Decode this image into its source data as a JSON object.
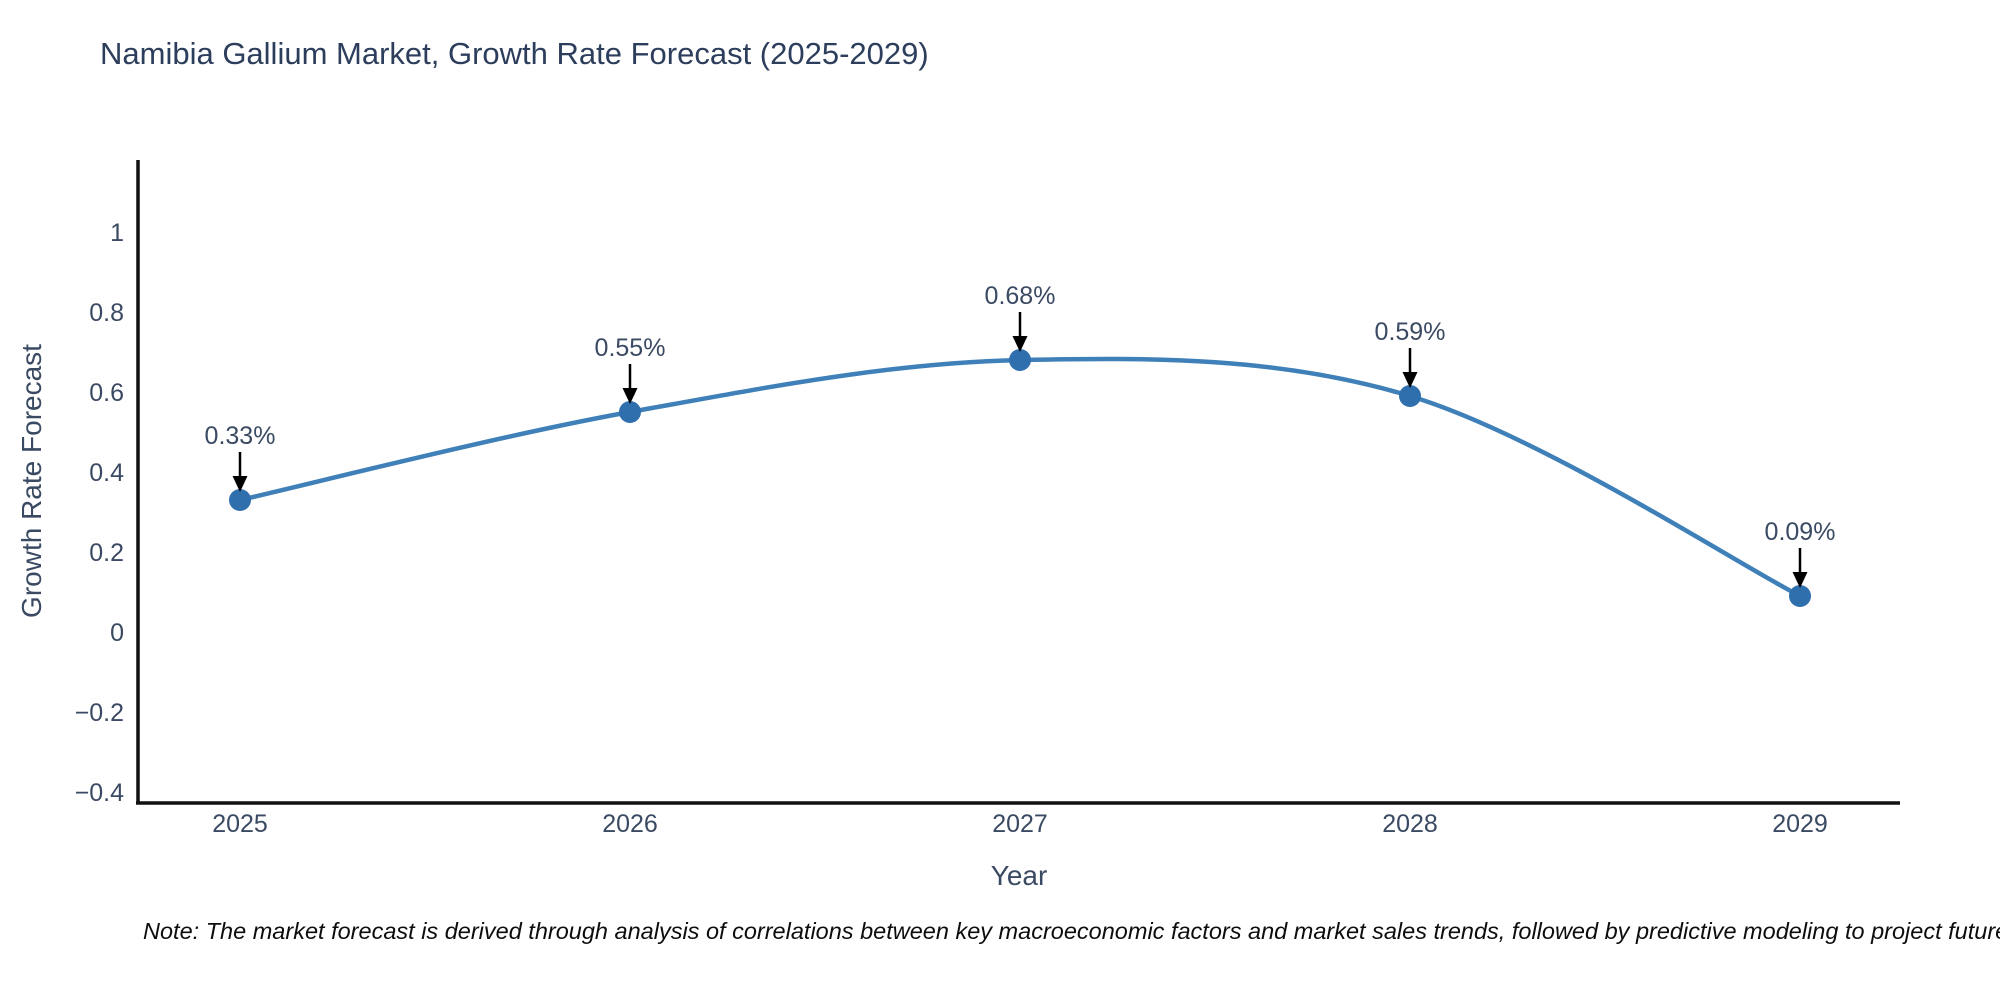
{
  "chart_data": {
    "type": "line",
    "title": "Namibia Gallium Market, Growth Rate Forecast (2025-2029)",
    "xlabel": "Year",
    "ylabel": "Growth Rate Forecast",
    "x": [
      2025,
      2026,
      2027,
      2028,
      2029
    ],
    "x_tick_labels": [
      "2025",
      "2026",
      "2027",
      "2028",
      "2029"
    ],
    "series": [
      {
        "name": "Growth Rate Forecast",
        "values": [
          0.33,
          0.55,
          0.68,
          0.59,
          0.09
        ]
      }
    ],
    "point_labels": [
      "0.33%",
      "0.55%",
      "0.68%",
      "0.59%",
      "0.09%"
    ],
    "ytick_values": [
      1,
      0.8,
      0.6,
      0.4,
      0.2,
      0,
      -0.2,
      -0.4
    ],
    "ytick_labels": [
      "1",
      "0.8",
      "0.6",
      "0.4",
      "0.2",
      "0",
      "−0.2",
      "−0.4"
    ],
    "ylim": [
      -0.425,
      1.18
    ],
    "xlim": [
      2024.74,
      2029.26
    ],
    "grid": false,
    "legend": false,
    "line_shape": "spline",
    "colors": {
      "line": "#3f80b8",
      "marker": "#306fae",
      "annotation_text": "#3b4a63",
      "annotation_arrow": "#000000",
      "axis_line": "#111111",
      "title_text": "#2c3e5c",
      "tick_text": "#3b4a63"
    }
  },
  "footer": {
    "note": "Note: The market forecast is derived through analysis of correlations between key macroeconomic factors and market sales trends, followed by predictive modeling to project future sales"
  }
}
